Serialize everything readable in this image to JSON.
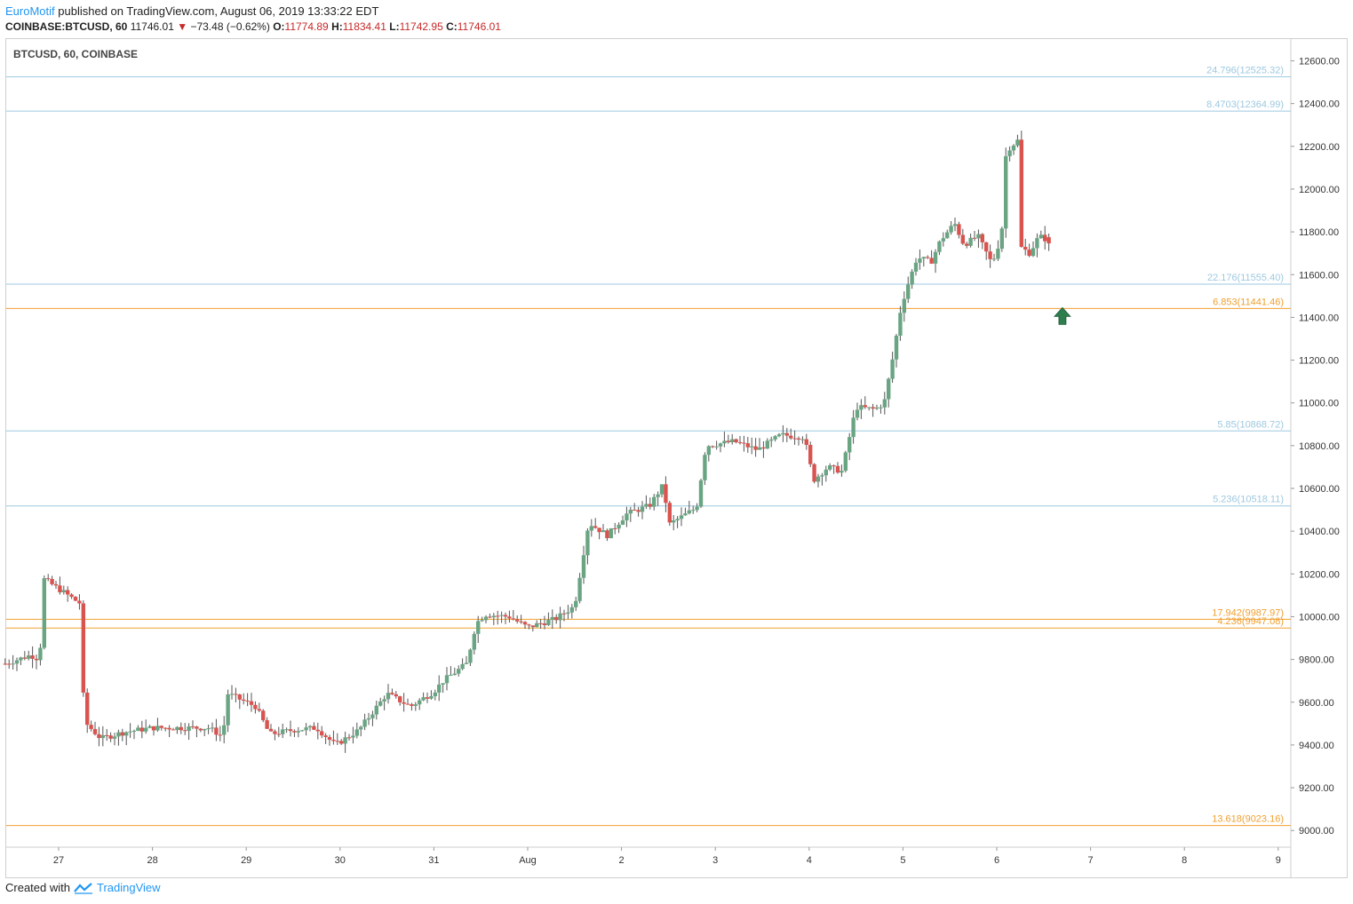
{
  "header": {
    "author": "EuroMotif",
    "published_text": "published on TradingView.com, August 06, 2019 13:33:22 EDT",
    "symbol": "COINBASE:BTCUSD, 60",
    "last": "11746.01",
    "change": "−73.48 (−0.62%)",
    "o_label": "O:",
    "o": "11774.89",
    "h_label": "H:",
    "h": "11834.41",
    "l_label": "L:",
    "l": "11742.95",
    "c_label": "C:",
    "c": "11746.01"
  },
  "footer": {
    "created_with": "Created with",
    "brand": "TradingView"
  },
  "colors": {
    "up": "#6aa583",
    "down": "#d9534f",
    "blue_level": "#9ec9e0",
    "orange_level": "#f0a030",
    "arrow": "#2e7d4f"
  },
  "chart_data": {
    "type": "candlestick",
    "title": "BTCUSD, 60, COINBASE",
    "ylim": [
      8920,
      12700
    ],
    "y_ticks": [
      "12600.00",
      "12400.00",
      "12200.00",
      "12000.00",
      "11800.00",
      "11600.00",
      "11400.00",
      "11200.00",
      "11000.00",
      "10800.00",
      "10600.00",
      "10400.00",
      "10200.00",
      "10000.00",
      "9800.00",
      "9600.00",
      "9400.00",
      "9200.00",
      "9000.00"
    ],
    "x_ticks": [
      {
        "label": "27",
        "day": 0
      },
      {
        "label": "28",
        "day": 1
      },
      {
        "label": "29",
        "day": 2
      },
      {
        "label": "30",
        "day": 3
      },
      {
        "label": "31",
        "day": 4
      },
      {
        "label": "Aug",
        "day": 5
      },
      {
        "label": "2",
        "day": 6
      },
      {
        "label": "3",
        "day": 7
      },
      {
        "label": "4",
        "day": 8
      },
      {
        "label": "5",
        "day": 9
      },
      {
        "label": "6",
        "day": 10
      },
      {
        "label": "7",
        "day": 11
      },
      {
        "label": "8",
        "day": 12
      },
      {
        "label": "9",
        "day": 13
      }
    ],
    "levels": [
      {
        "label": "24.796(12525.32)",
        "value": 12525.32,
        "color": "blue"
      },
      {
        "label": "8.4703(12364.99)",
        "value": 12364.99,
        "color": "blue"
      },
      {
        "label": "22.176(11555.40)",
        "value": 11555.4,
        "color": "blue"
      },
      {
        "label": "6.853(11441.46)",
        "value": 11441.46,
        "color": "orange"
      },
      {
        "label": "5.85(10868.72)",
        "value": 10868.72,
        "color": "blue"
      },
      {
        "label": "5.236(10518.11)",
        "value": 10518.11,
        "color": "blue"
      },
      {
        "label": "17.942(9987.97)",
        "value": 9987.97,
        "color": "orange"
      },
      {
        "label": "4.236(9947.08)",
        "value": 9947.08,
        "color": "orange"
      },
      {
        "label": "13.618(9023.16)",
        "value": 9023.16,
        "color": "orange"
      }
    ],
    "arrow_marker": {
      "day": 10.7,
      "price": 11400,
      "direction": "up"
    },
    "path": [
      [
        -0.57,
        9780
      ],
      [
        -0.3,
        9820
      ],
      [
        -0.2,
        9800
      ],
      [
        -0.17,
        10180
      ],
      [
        0.0,
        10130
      ],
      [
        0.2,
        10070
      ],
      [
        0.24,
        10060
      ],
      [
        0.27,
        9510
      ],
      [
        0.45,
        9430
      ],
      [
        0.7,
        9460
      ],
      [
        1.0,
        9480
      ],
      [
        1.3,
        9480
      ],
      [
        1.6,
        9480
      ],
      [
        1.75,
        9440
      ],
      [
        1.8,
        9640
      ],
      [
        2.1,
        9580
      ],
      [
        2.25,
        9450
      ],
      [
        2.5,
        9470
      ],
      [
        2.75,
        9480
      ],
      [
        2.95,
        9400
      ],
      [
        3.2,
        9470
      ],
      [
        3.5,
        9640
      ],
      [
        3.75,
        9580
      ],
      [
        4.0,
        9650
      ],
      [
        4.1,
        9700
      ],
      [
        4.35,
        9780
      ],
      [
        4.45,
        9970
      ],
      [
        4.55,
        10010
      ],
      [
        4.8,
        10000
      ],
      [
        5.0,
        9950
      ],
      [
        5.3,
        9990
      ],
      [
        5.5,
        10050
      ],
      [
        5.65,
        10440
      ],
      [
        5.85,
        10380
      ],
      [
        6.05,
        10480
      ],
      [
        6.3,
        10520
      ],
      [
        6.45,
        10620
      ],
      [
        6.5,
        10430
      ],
      [
        6.8,
        10510
      ],
      [
        6.9,
        10800
      ],
      [
        7.2,
        10820
      ],
      [
        7.45,
        10780
      ],
      [
        7.7,
        10850
      ],
      [
        7.95,
        10840
      ],
      [
        8.0,
        10730
      ],
      [
        8.05,
        10640
      ],
      [
        8.2,
        10700
      ],
      [
        8.35,
        10680
      ],
      [
        8.45,
        10880
      ],
      [
        8.5,
        10980
      ],
      [
        8.7,
        10970
      ],
      [
        8.8,
        11000
      ],
      [
        8.9,
        11230
      ],
      [
        8.98,
        11450
      ],
      [
        9.05,
        11550
      ],
      [
        9.15,
        11680
      ],
      [
        9.3,
        11660
      ],
      [
        9.4,
        11760
      ],
      [
        9.55,
        11840
      ],
      [
        9.65,
        11740
      ],
      [
        9.8,
        11780
      ],
      [
        9.95,
        11650
      ],
      [
        10.05,
        11780
      ],
      [
        10.1,
        12180
      ],
      [
        10.23,
        12230
      ],
      [
        10.25,
        11730
      ],
      [
        10.35,
        11700
      ],
      [
        10.45,
        11780
      ],
      [
        10.55,
        11760
      ]
    ],
    "last_candle": {
      "o": 11774.89,
      "h": 11834.41,
      "l": 11742.95,
      "c": 11746.01
    }
  }
}
